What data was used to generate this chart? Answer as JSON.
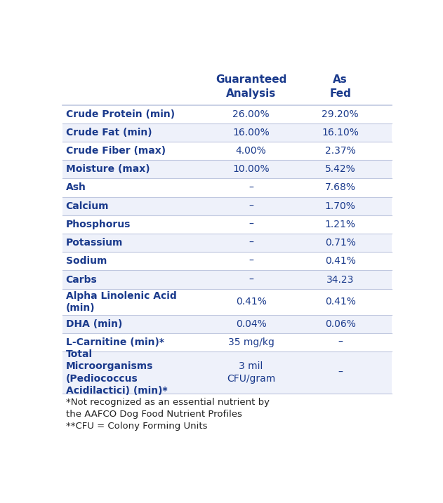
{
  "header_col1": "Guaranteed\nAnalysis",
  "header_col2": "As\nFed",
  "header_color": "#1a3a8c",
  "row_label_color": "#1a3a8c",
  "value_color": "#1a3a8c",
  "bg_color": "#ffffff",
  "row_bg_colors": [
    "#ffffff",
    "#eef1fa"
  ],
  "separator_color": "#c0c8e0",
  "rows": [
    {
      "label": "Crude Protein (min)",
      "ga": "26.00%",
      "af": "29.20%"
    },
    {
      "label": "Crude Fat (min)",
      "ga": "16.00%",
      "af": "16.10%"
    },
    {
      "label": "Crude Fiber (max)",
      "ga": "4.00%",
      "af": "2.37%"
    },
    {
      "label": "Moisture (max)",
      "ga": "10.00%",
      "af": "5.42%"
    },
    {
      "label": "Ash",
      "ga": "–",
      "af": "7.68%"
    },
    {
      "label": "Calcium",
      "ga": "–",
      "af": "1.70%"
    },
    {
      "label": "Phosphorus",
      "ga": "–",
      "af": "1.21%"
    },
    {
      "label": "Potassium",
      "ga": "–",
      "af": "0.71%"
    },
    {
      "label": "Sodium",
      "ga": "–",
      "af": "0.41%"
    },
    {
      "label": "Carbs",
      "ga": "–",
      "af": "34.23"
    },
    {
      "label": "Alpha Linolenic Acid\n(min)",
      "ga": "0.41%",
      "af": "0.41%"
    },
    {
      "label": "DHA (min)",
      "ga": "0.04%",
      "af": "0.06%"
    },
    {
      "label": "L-Carnitine (min)*",
      "ga": "35 mg/kg",
      "af": "–"
    },
    {
      "label": "Total\nMicroorganisms\n(Pediococcus\nAcidilactici) (min)*",
      "ga": "3 mil\nCFU/gram",
      "af": "–"
    }
  ],
  "footnote": "*Not recognized as an essential nutrient by\nthe AAFCO Dog Food Nutrient Profiles\n**CFU = Colony Forming Units",
  "footnote_color": "#222222",
  "footnote_fontsize": 9.5
}
